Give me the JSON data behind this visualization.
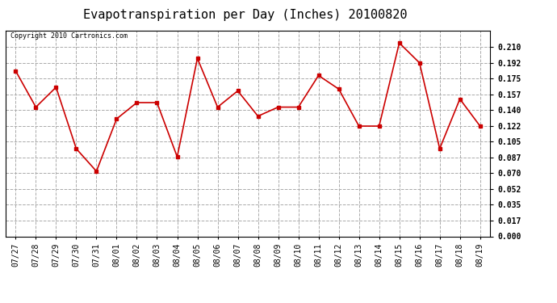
{
  "title": "Evapotranspiration per Day (Inches) 20100820",
  "copyright_text": "Copyright 2010 Cartronics.com",
  "x_labels": [
    "07/27",
    "07/28",
    "07/29",
    "07/30",
    "07/31",
    "08/01",
    "08/02",
    "08/03",
    "08/04",
    "08/05",
    "08/06",
    "08/07",
    "08/08",
    "08/09",
    "08/10",
    "08/11",
    "08/12",
    "08/13",
    "08/14",
    "08/15",
    "08/16",
    "08/17",
    "08/18",
    "08/19"
  ],
  "y_values": [
    0.183,
    0.143,
    0.165,
    0.097,
    0.072,
    0.13,
    0.148,
    0.148,
    0.088,
    0.197,
    0.143,
    0.161,
    0.133,
    0.143,
    0.143,
    0.178,
    0.163,
    0.122,
    0.122,
    0.214,
    0.192,
    0.097,
    0.152,
    0.122
  ],
  "line_color": "#cc0000",
  "marker": "s",
  "marker_size": 3,
  "y_ticks": [
    0.0,
    0.017,
    0.035,
    0.052,
    0.07,
    0.087,
    0.105,
    0.122,
    0.14,
    0.157,
    0.175,
    0.192,
    0.21
  ],
  "ylim": [
    0.0,
    0.228
  ],
  "background_color": "#ffffff",
  "grid_color": "#aaaaaa",
  "title_fontsize": 11,
  "copyright_fontsize": 6,
  "tick_fontsize": 7,
  "ytick_fontsize": 7
}
